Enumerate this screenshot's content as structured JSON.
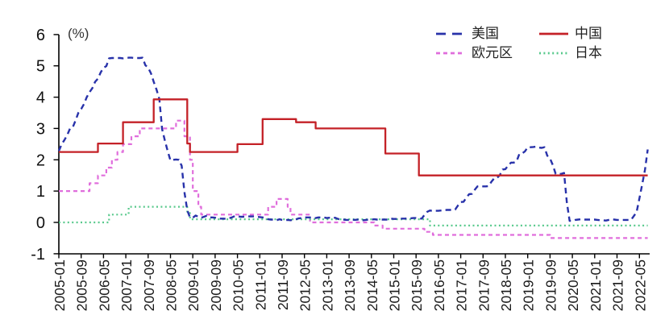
{
  "chart_data": {
    "type": "line",
    "title": "",
    "unit_label": "(%)",
    "x_start_month": "2005-01",
    "x_end_month": "2022-08",
    "x_tick_interval_months": 8,
    "x_tick_labels": [
      "2005-01",
      "2005-09",
      "2006-05",
      "2007-01",
      "2007-09",
      "2008-05",
      "2009-01",
      "2009-09",
      "2010-05",
      "2011-01",
      "2011-09",
      "2012-05",
      "2013-01",
      "2013-09",
      "2014-05",
      "2015-01",
      "2015-09",
      "2016-05",
      "2017-01",
      "2017-09",
      "2018-05",
      "2019-01",
      "2019-09",
      "2020-05",
      "2021-01",
      "2021-09",
      "2022-05"
    ],
    "ylim": [
      -1,
      6
    ],
    "y_ticks": [
      6,
      5,
      4,
      3,
      2,
      1,
      0,
      -1
    ],
    "grid": false,
    "legend_position": "top-right",
    "axis_color": "#000000",
    "series": [
      {
        "key": "us",
        "name": "美国",
        "color": "#2832aa",
        "line_style": "dashed",
        "data_format": "monthly",
        "start": "2005-01",
        "values": [
          2.28,
          2.5,
          2.63,
          2.79,
          3.0,
          3.04,
          3.26,
          3.5,
          3.62,
          3.78,
          4.0,
          4.16,
          4.29,
          4.49,
          4.59,
          4.79,
          4.94,
          4.99,
          5.24,
          5.25,
          5.25,
          5.25,
          5.25,
          5.24,
          5.25,
          5.26,
          5.26,
          5.25,
          5.25,
          5.25,
          5.26,
          5.02,
          4.94,
          4.76,
          4.49,
          4.24,
          3.94,
          2.98,
          2.61,
          2.28,
          1.98,
          2.0,
          2.01,
          2.0,
          1.81,
          0.97,
          0.39,
          0.16,
          0.15,
          0.22,
          0.18,
          0.15,
          0.18,
          0.21,
          0.16,
          0.16,
          0.15,
          0.12,
          0.12,
          0.12,
          0.11,
          0.13,
          0.16,
          0.2,
          0.2,
          0.18,
          0.18,
          0.19,
          0.19,
          0.19,
          0.19,
          0.18,
          0.17,
          0.16,
          0.14,
          0.1,
          0.09,
          0.09,
          0.07,
          0.1,
          0.08,
          0.07,
          0.08,
          0.07,
          0.08,
          0.1,
          0.13,
          0.14,
          0.16,
          0.16,
          0.16,
          0.13,
          0.14,
          0.16,
          0.16,
          0.16,
          0.14,
          0.15,
          0.14,
          0.15,
          0.11,
          0.09,
          0.09,
          0.08,
          0.08,
          0.09,
          0.08,
          0.09,
          0.07,
          0.07,
          0.08,
          0.09,
          0.09,
          0.1,
          0.09,
          0.09,
          0.09,
          0.09,
          0.09,
          0.12,
          0.11,
          0.11,
          0.11,
          0.12,
          0.12,
          0.13,
          0.13,
          0.14,
          0.14,
          0.12,
          0.12,
          0.24,
          0.34,
          0.38,
          0.36,
          0.37,
          0.37,
          0.38,
          0.39,
          0.4,
          0.4,
          0.4,
          0.41,
          0.54,
          0.65,
          0.66,
          0.79,
          0.9,
          0.91,
          1.04,
          1.15,
          1.16,
          1.15,
          1.15,
          1.16,
          1.3,
          1.41,
          1.42,
          1.51,
          1.69,
          1.7,
          1.82,
          1.91,
          1.91,
          1.95,
          2.19,
          2.2,
          2.27,
          2.4,
          2.4,
          2.41,
          2.42,
          2.39,
          2.38,
          2.4,
          2.13,
          2.04,
          1.83,
          1.55,
          1.55,
          1.55,
          1.58,
          0.65,
          0.05,
          0.05,
          0.08,
          0.09,
          0.1,
          0.09,
          0.09,
          0.09,
          0.09,
          0.09,
          0.08,
          0.07,
          0.07,
          0.06,
          0.08,
          0.1,
          0.09,
          0.08,
          0.08,
          0.08,
          0.08,
          0.08,
          0.08,
          0.2,
          0.33,
          0.77,
          1.21,
          1.68,
          2.33
        ]
      },
      {
        "key": "china",
        "name": "中国",
        "color": "#c42127",
        "line_style": "solid",
        "data_format": "step_segments",
        "segments": [
          [
            "2005-01",
            2.25
          ],
          [
            "2006-03",
            2.52
          ],
          [
            "2006-12",
            3.2
          ],
          [
            "2007-11",
            3.93
          ],
          [
            "2008-11",
            2.52
          ],
          [
            "2008-12",
            2.25
          ],
          [
            "2010-05",
            2.5
          ],
          [
            "2011-02",
            3.3
          ],
          [
            "2012-02",
            3.2
          ],
          [
            "2012-09",
            3.0
          ],
          [
            "2014-10",
            2.2
          ],
          [
            "2015-10",
            1.5
          ]
        ]
      },
      {
        "key": "eurozone",
        "name": "欧元区",
        "color": "#e06edc",
        "line_style": "dashed",
        "data_format": "step_segments",
        "segments": [
          [
            "2005-01",
            1.0
          ],
          [
            "2005-12",
            1.25
          ],
          [
            "2006-03",
            1.5
          ],
          [
            "2006-06",
            1.75
          ],
          [
            "2006-08",
            2.0
          ],
          [
            "2006-10",
            2.25
          ],
          [
            "2006-12",
            2.5
          ],
          [
            "2007-03",
            2.75
          ],
          [
            "2007-06",
            3.0
          ],
          [
            "2008-07",
            3.25
          ],
          [
            "2008-10",
            2.75
          ],
          [
            "2008-12",
            2.0
          ],
          [
            "2009-01",
            1.0
          ],
          [
            "2009-03",
            0.5
          ],
          [
            "2009-04",
            0.25
          ],
          [
            "2011-04",
            0.5
          ],
          [
            "2011-07",
            0.75
          ],
          [
            "2011-11",
            0.5
          ],
          [
            "2011-12",
            0.25
          ],
          [
            "2012-07",
            0.0
          ],
          [
            "2014-06",
            -0.1
          ],
          [
            "2014-09",
            -0.2
          ],
          [
            "2015-12",
            -0.3
          ],
          [
            "2016-03",
            -0.4
          ],
          [
            "2019-09",
            -0.5
          ]
        ]
      },
      {
        "key": "japan",
        "name": "日本",
        "color": "#58c98c",
        "line_style": "dotted",
        "data_format": "step_segments",
        "segments": [
          [
            "2005-01",
            0.0
          ],
          [
            "2006-07",
            0.25
          ],
          [
            "2007-02",
            0.5
          ],
          [
            "2008-11",
            0.3
          ],
          [
            "2008-12",
            0.1
          ],
          [
            "2016-02",
            -0.1
          ]
        ]
      }
    ]
  }
}
